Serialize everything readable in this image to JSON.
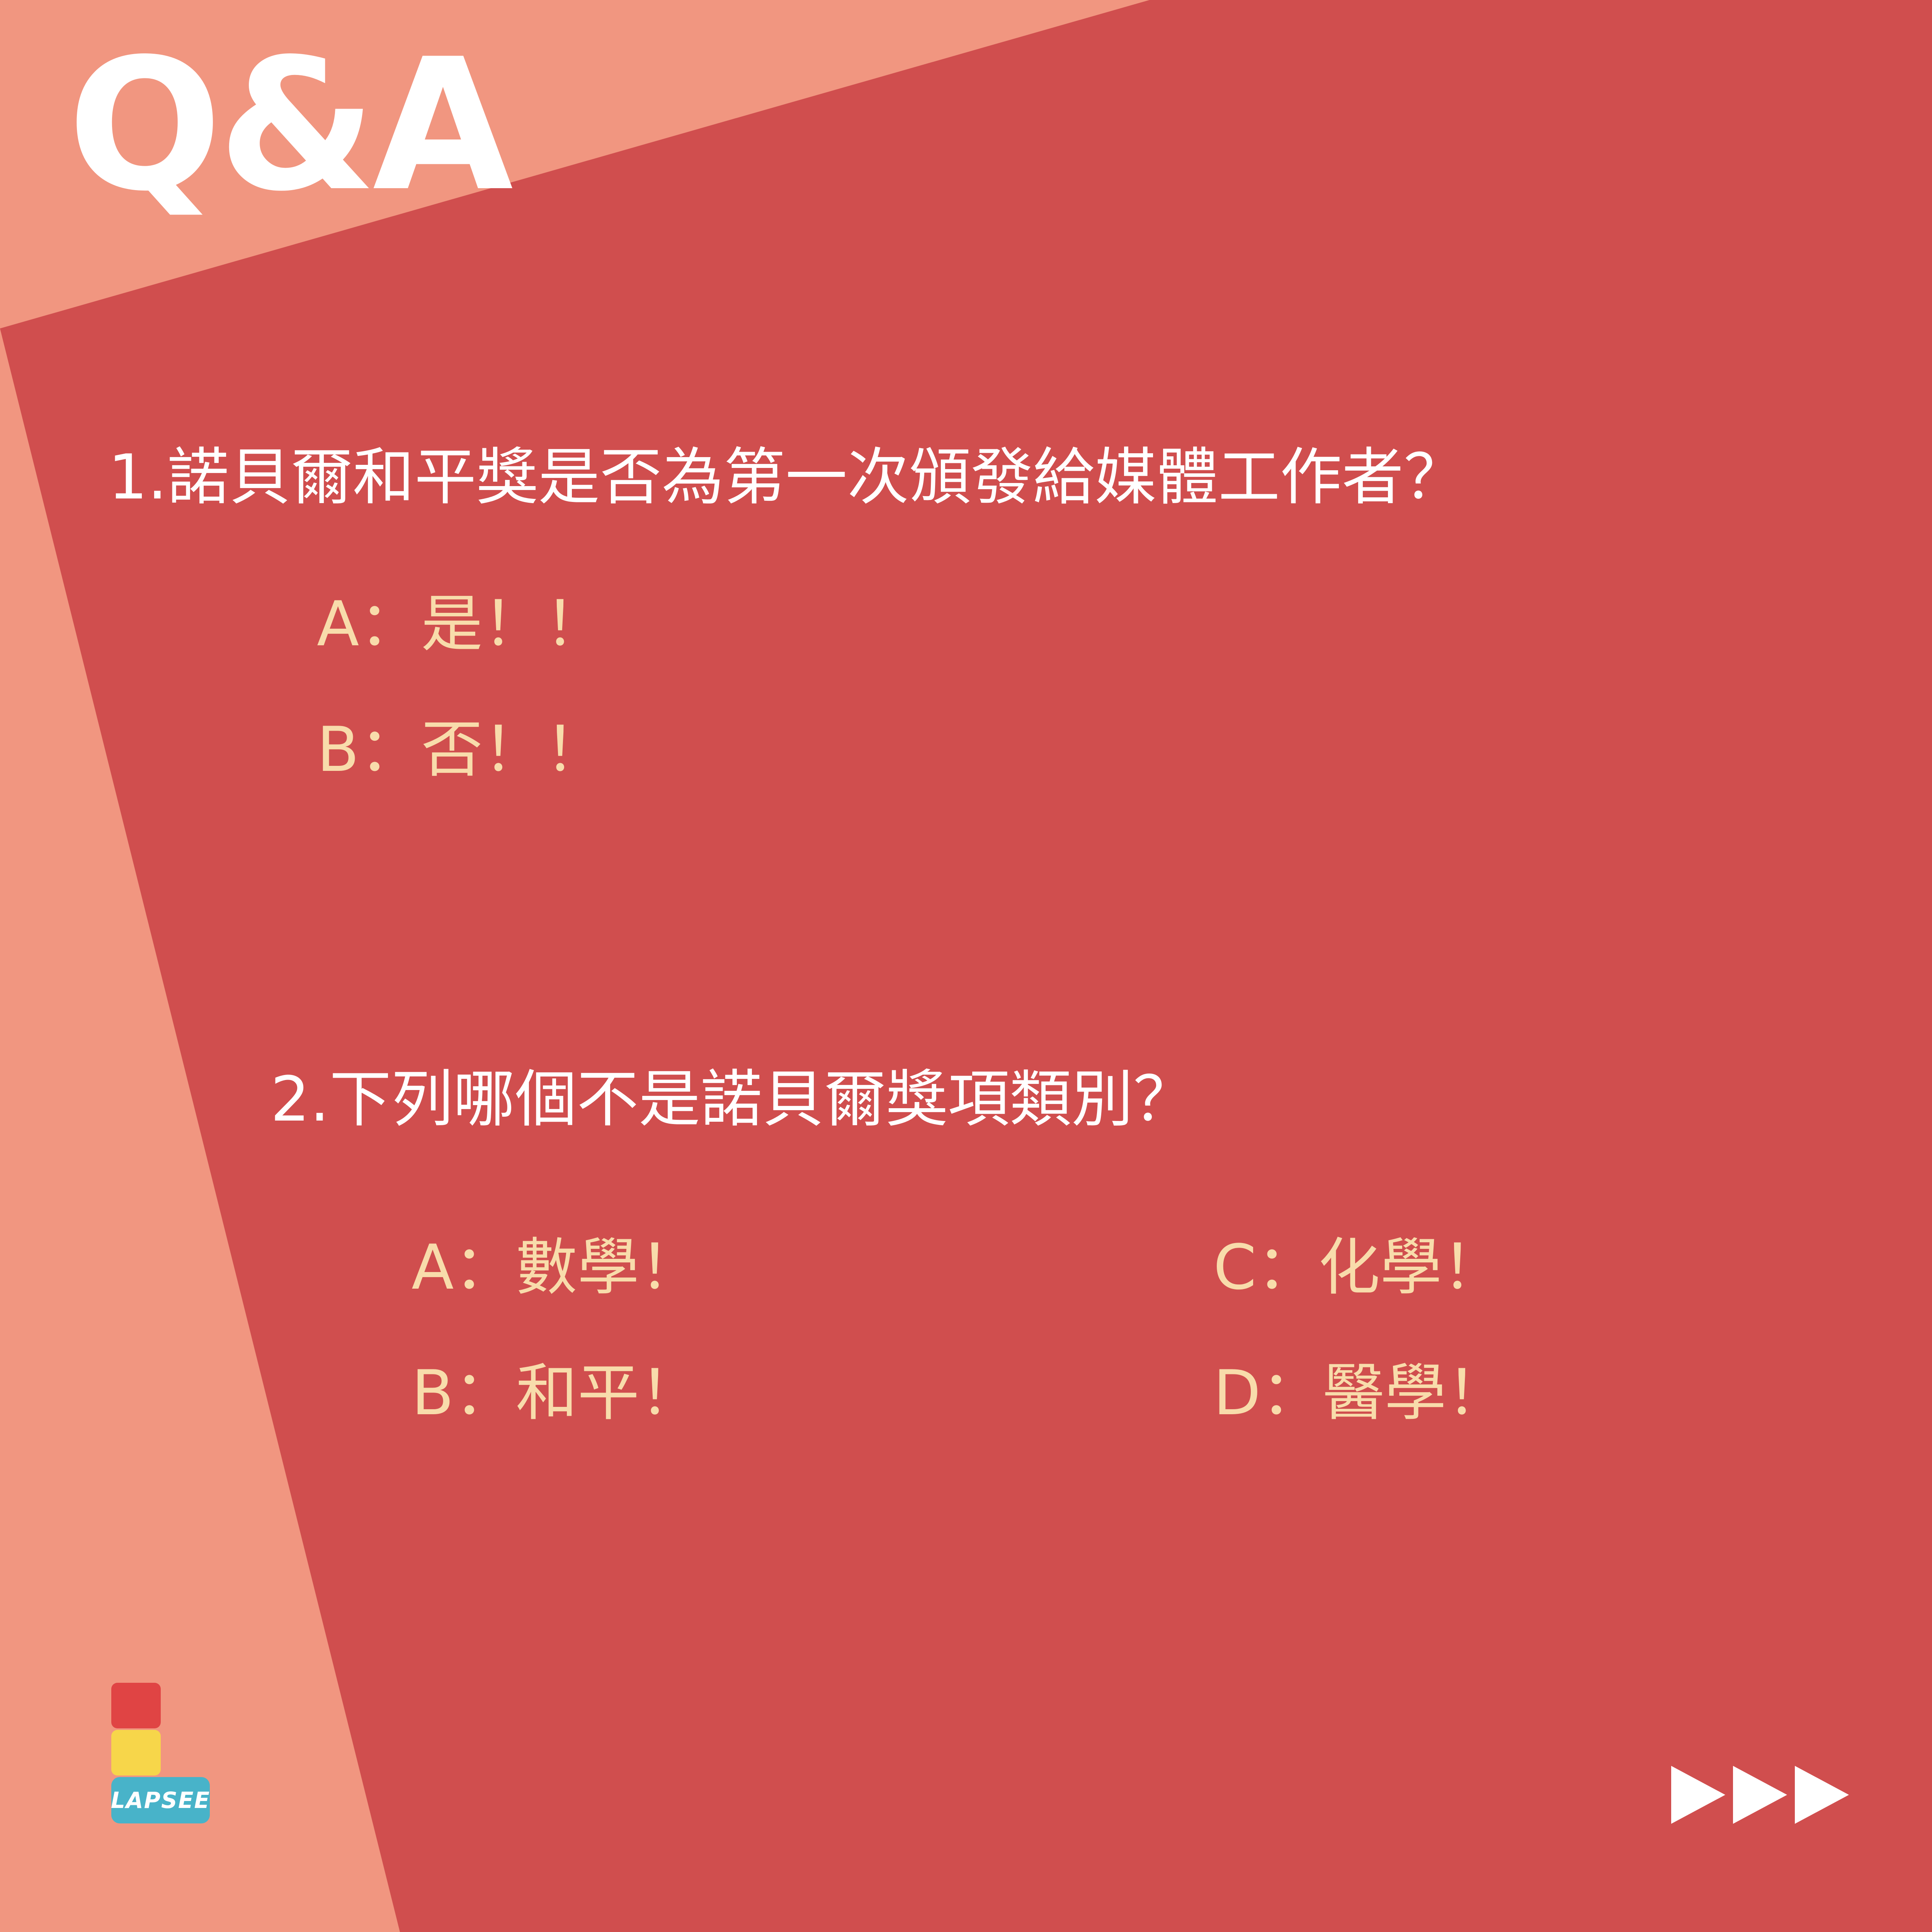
{
  "title": "Q&A",
  "colors": {
    "background_light": "#f19680",
    "background_dark": "#d04e4e",
    "question_text": "#ffffff",
    "option_text": "#f8dcab"
  },
  "question1": {
    "text": "1.諾貝爾和平獎是否為第一次頒發給媒體工作者？",
    "options": [
      "A：是！！",
      "B：否！！"
    ]
  },
  "question2": {
    "text": "2.下列哪個不是諾貝爾獎項類別？",
    "options": [
      "A：數學！",
      "B：和平！",
      "C：化學！",
      "D：醫學！"
    ]
  },
  "logo": {
    "label": "LAPSEE"
  },
  "next_icon": "triple-arrow-right-icon"
}
